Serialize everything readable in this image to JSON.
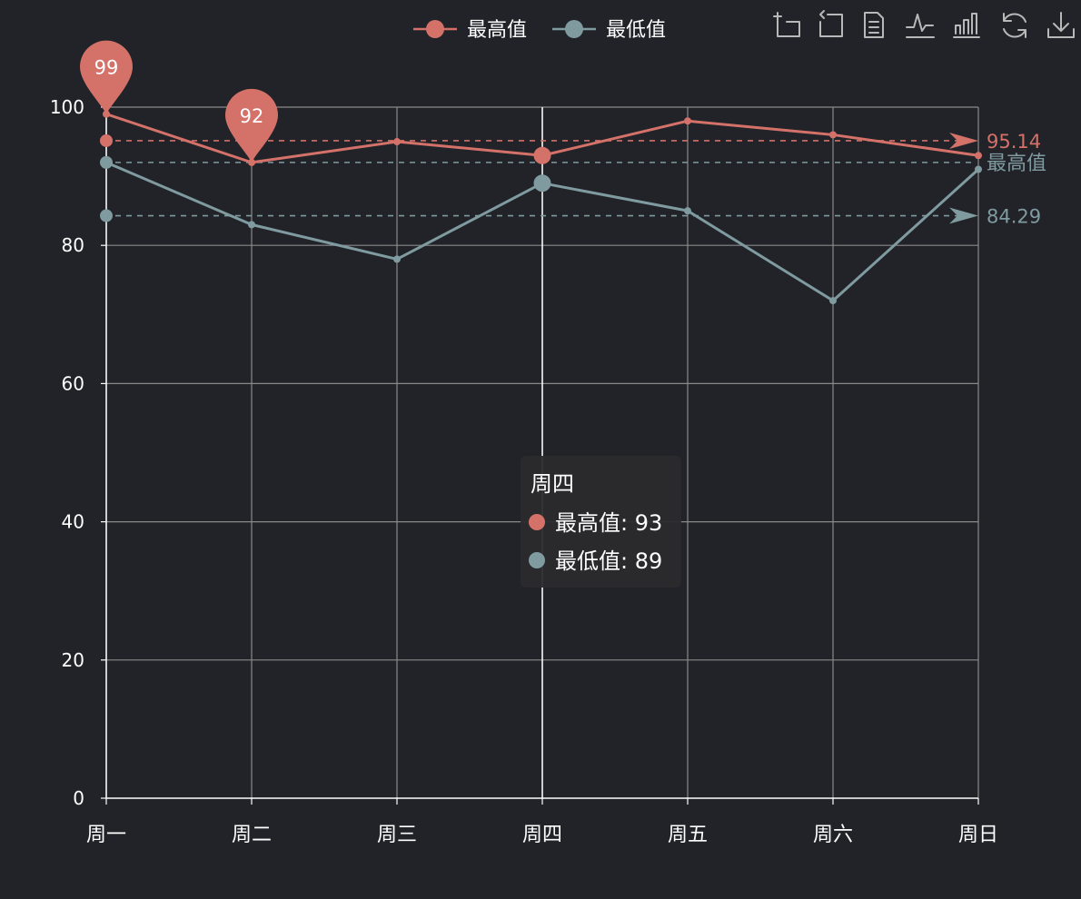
{
  "colors": {
    "background": "#212328",
    "series_high": "#d4726a",
    "series_low": "#7f9ba0",
    "grid": "#8a8a8a",
    "axis": "#ffffff",
    "text": "#ffffff",
    "tooltip_bg": "#2b2b2d"
  },
  "legend": {
    "items": [
      {
        "label": "最高值",
        "color": "#d4726a"
      },
      {
        "label": "最低值",
        "color": "#7f9ba0"
      }
    ]
  },
  "toolbox": {
    "icons": [
      "zoom-icon",
      "zoom-reset-icon",
      "data-view-icon",
      "line-chart-icon",
      "bar-chart-icon",
      "restore-icon",
      "save-image-icon"
    ]
  },
  "tooltip": {
    "title": "周四",
    "rows": [
      {
        "label": "最高值: 93",
        "color": "#d4726a"
      },
      {
        "label": "最低值: 89",
        "color": "#7f9ba0"
      }
    ]
  },
  "chart_data": {
    "type": "line",
    "categories": [
      "周一",
      "周二",
      "周三",
      "周四",
      "周五",
      "周六",
      "周日"
    ],
    "ylim": [
      0,
      100
    ],
    "yticks": [
      0,
      20,
      40,
      60,
      80,
      100
    ],
    "grid": true,
    "legend_position": "top-center",
    "series": [
      {
        "name": "最高值",
        "values": [
          99,
          92,
          95,
          93,
          98,
          96,
          93
        ],
        "color": "#d4726a",
        "mark_points": [
          {
            "label": "99",
            "category": "周一",
            "value": 99
          },
          {
            "label": "92",
            "category": "周二",
            "value": 92
          }
        ],
        "mark_line": {
          "label": "95.14",
          "value": 95.14
        }
      },
      {
        "name": "最低值",
        "values": [
          92,
          83,
          78,
          89,
          85,
          72,
          91
        ],
        "color": "#7f9ba0",
        "mark_lines": [
          {
            "label": "最高值",
            "value": 92
          },
          {
            "label": "84.29",
            "value": 84.29
          }
        ]
      }
    ],
    "highlight_category": "周四"
  }
}
